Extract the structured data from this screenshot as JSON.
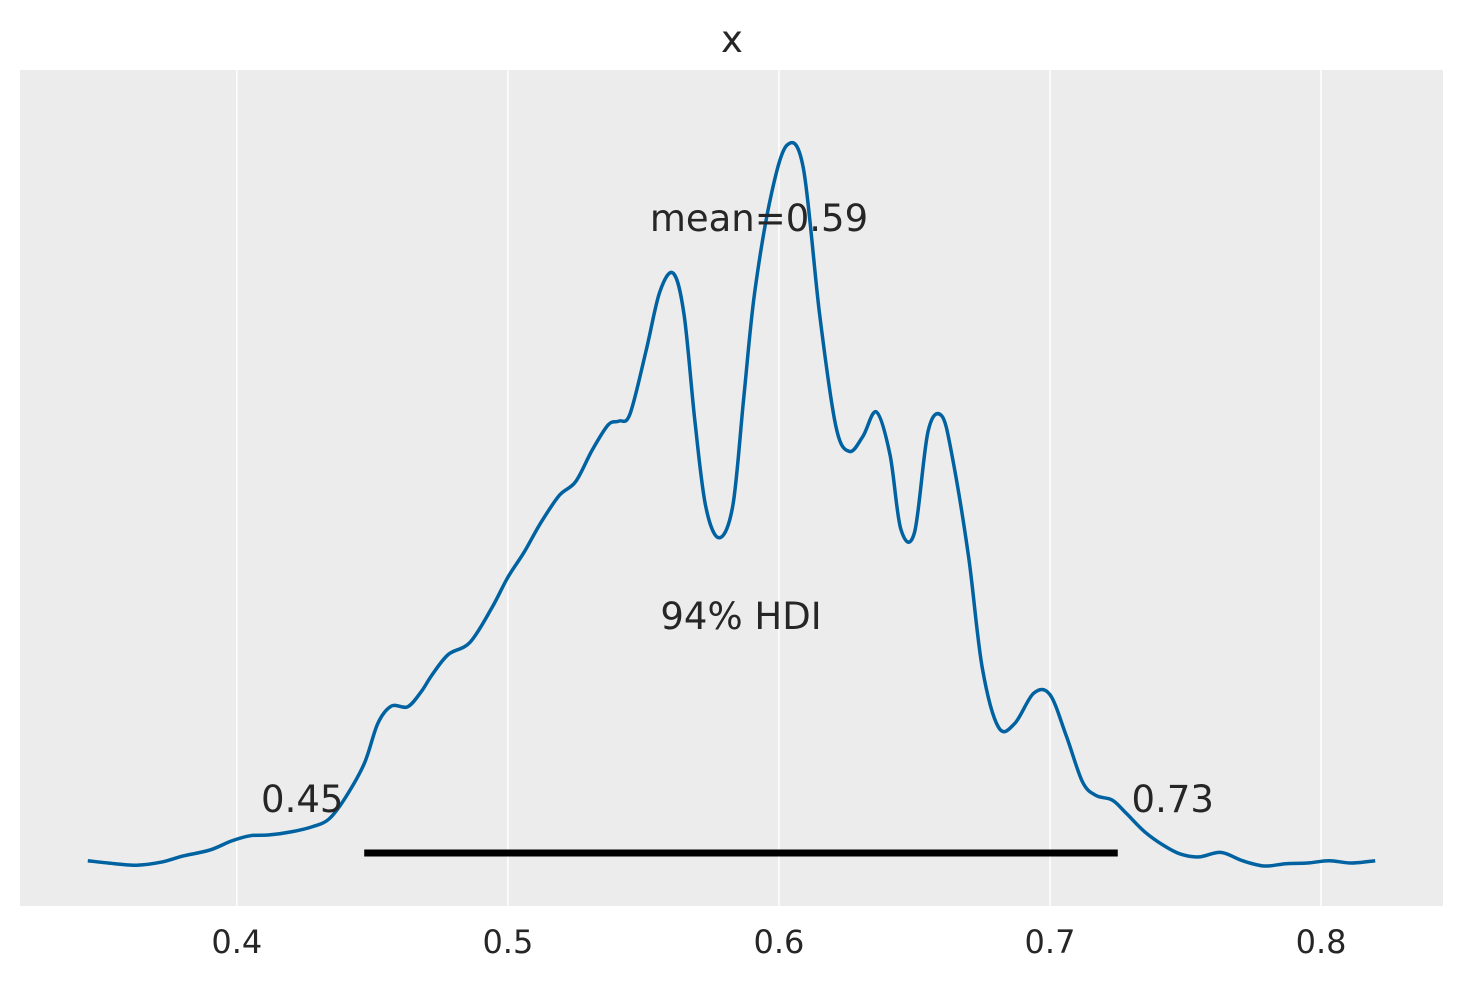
{
  "chart_data": {
    "type": "line",
    "title": "x",
    "xlabel": "",
    "ylabel": "",
    "xlim": [
      0.32,
      0.845
    ],
    "ylim": [
      0.0,
      1.0
    ],
    "xticks": [
      "0.4",
      "0.5",
      "0.6",
      "0.7",
      "0.8"
    ],
    "grid": "vertical",
    "background_color": "#ececed",
    "line_color": "#0062a0",
    "series": [
      {
        "name": "",
        "x": [
          0.345,
          0.355,
          0.363,
          0.372,
          0.38,
          0.39,
          0.398,
          0.405,
          0.412,
          0.42,
          0.428,
          0.434,
          0.44,
          0.447,
          0.452,
          0.457,
          0.463,
          0.468,
          0.472,
          0.478,
          0.486,
          0.494,
          0.5,
          0.506,
          0.512,
          0.519,
          0.525,
          0.531,
          0.537,
          0.541,
          0.545,
          0.551,
          0.556,
          0.561,
          0.565,
          0.569,
          0.573,
          0.578,
          0.583,
          0.587,
          0.591,
          0.597,
          0.603,
          0.609,
          0.615,
          0.621,
          0.626,
          0.631,
          0.636,
          0.641,
          0.645,
          0.65,
          0.655,
          0.66,
          0.664,
          0.67,
          0.675,
          0.681,
          0.687,
          0.694,
          0.7,
          0.706,
          0.712,
          0.717,
          0.723,
          0.728,
          0.735,
          0.742,
          0.748,
          0.755,
          0.763,
          0.771,
          0.779,
          0.787,
          0.795,
          0.803,
          0.811,
          0.82
        ],
        "y": [
          0.007,
          0.003,
          0.001,
          0.005,
          0.013,
          0.021,
          0.033,
          0.04,
          0.041,
          0.045,
          0.052,
          0.062,
          0.09,
          0.135,
          0.188,
          0.211,
          0.21,
          0.23,
          0.252,
          0.279,
          0.295,
          0.34,
          0.381,
          0.414,
          0.452,
          0.489,
          0.507,
          0.548,
          0.582,
          0.587,
          0.596,
          0.68,
          0.757,
          0.782,
          0.727,
          0.587,
          0.474,
          0.433,
          0.476,
          0.617,
          0.755,
          0.883,
          0.951,
          0.921,
          0.728,
          0.58,
          0.547,
          0.567,
          0.599,
          0.542,
          0.444,
          0.44,
          0.573,
          0.594,
          0.539,
          0.407,
          0.262,
          0.183,
          0.188,
          0.228,
          0.226,
          0.172,
          0.111,
          0.093,
          0.087,
          0.07,
          0.045,
          0.027,
          0.016,
          0.012,
          0.018,
          0.007,
          0.0,
          0.003,
          0.004,
          0.007,
          0.004,
          0.007
        ]
      }
    ],
    "hdi": {
      "label": "94% HDI",
      "low": 0.447,
      "high": 0.725,
      "low_label": "0.45",
      "high_label": "0.73",
      "color": "#000000"
    },
    "mean_label": "mean=0.59"
  }
}
